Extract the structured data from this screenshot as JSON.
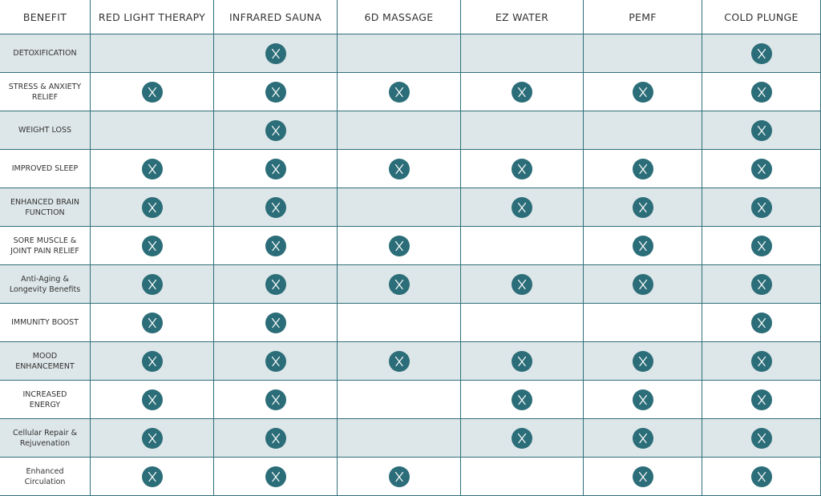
{
  "table": {
    "header": [
      "BENEFIT",
      "RED LIGHT THERAPY",
      "INFRARED SAUNA",
      "6D MASSAGE",
      "EZ WATER",
      "PEMF",
      "COLD PLUNGE"
    ],
    "rows": [
      {
        "label": "DETOXIFICATION",
        "marks": [
          false,
          true,
          false,
          false,
          false,
          true
        ]
      },
      {
        "label": "STRESS & ANXIETY RELIEF",
        "marks": [
          true,
          true,
          true,
          true,
          true,
          true
        ]
      },
      {
        "label": "WEIGHT LOSS",
        "marks": [
          false,
          true,
          false,
          false,
          false,
          true
        ]
      },
      {
        "label": "IMPROVED SLEEP",
        "marks": [
          true,
          true,
          true,
          true,
          true,
          true
        ]
      },
      {
        "label": "ENHANCED BRAIN FUNCTION",
        "marks": [
          true,
          true,
          false,
          true,
          true,
          true
        ]
      },
      {
        "label": "SORE MUSCLE & JOINT PAIN RELIEF",
        "marks": [
          true,
          true,
          true,
          false,
          true,
          true
        ]
      },
      {
        "label": "Anti-Aging & Longevity Benefits",
        "marks": [
          true,
          true,
          true,
          true,
          true,
          true
        ]
      },
      {
        "label": "IMMUNITY BOOST",
        "marks": [
          true,
          true,
          false,
          false,
          false,
          true
        ]
      },
      {
        "label": "MOOD ENHANCEMENT",
        "marks": [
          true,
          true,
          true,
          true,
          true,
          true
        ]
      },
      {
        "label": "INCREASED ENERGY",
        "marks": [
          true,
          true,
          false,
          true,
          true,
          true
        ]
      },
      {
        "label": "Cellular Repair & Rejuvenation",
        "marks": [
          true,
          true,
          false,
          true,
          true,
          true
        ]
      },
      {
        "label": "Enhanced Circulation",
        "marks": [
          true,
          true,
          true,
          false,
          true,
          true
        ]
      }
    ]
  }
}
